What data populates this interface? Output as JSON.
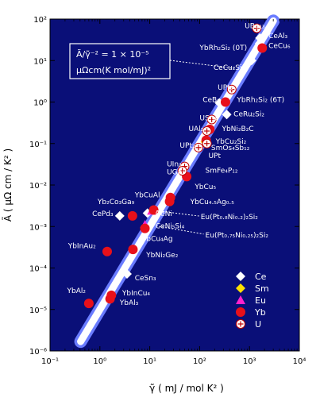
{
  "chart_data": {
    "type": "scatter",
    "title": "",
    "xlabel": "γ̃ ( mJ / mol K² )",
    "ylabel": "Ã ( μΩ cm / K² )",
    "xscale": "log",
    "yscale": "log",
    "xlim": [
      0.1,
      10000
    ],
    "ylim": [
      1e-06,
      100
    ],
    "x_tick_labels": [
      "10⁻¹",
      "10⁰",
      "10¹",
      "10²",
      "10³",
      "10⁴"
    ],
    "y_tick_labels": [
      "10⁻⁶",
      "10⁻⁵",
      "10⁻⁴",
      "10⁻³",
      "10⁻²",
      "10⁻¹",
      "10⁰",
      "10¹",
      "10²"
    ],
    "background_color": "#0a0f78",
    "grid": false,
    "legend_position": "lower-right",
    "annotation": {
      "line1": "Ã/γ̃⁻² = 1 × 10⁻⁵",
      "line2": "μΩcm(K mol/mJ)²"
    },
    "reference_line": {
      "ratio": 1e-05
    },
    "series": [
      {
        "name": "Ce",
        "marker": "diamond",
        "color": "#ffffff",
        "points": [
          {
            "label": "CeAl₃",
            "x": 1620,
            "y": 35
          },
          {
            "label": "CeCu₆",
            "x": 1600,
            "y": 26
          },
          {
            "label": "CeCu₂Si₂",
            "x": 1100,
            "y": 10
          },
          {
            "label": "CeB₆",
            "x": 250,
            "y": 0.95
          },
          {
            "label": "CeRu₂Si₂",
            "x": 350,
            "y": 0.5
          },
          {
            "label": "CePd₃",
            "x": 2.5,
            "y": 0.0018
          },
          {
            "label": "CeNi",
            "x": 9,
            "y": 0.0021
          },
          {
            "label": "CeNi₅Si₄",
            "x": 8,
            "y": 0.00095
          },
          {
            "label": "CeSn₃",
            "x": 3.5,
            "y": 7.2e-05
          }
        ]
      },
      {
        "name": "Sm",
        "marker": "diamond",
        "color": "#ffe000",
        "points": [
          {
            "label": "SmOs₄Sb₁₂",
            "x": 130,
            "y": 0.11
          },
          {
            "label": "SmFe₄P₁₂",
            "x": 48,
            "y": 0.028
          }
        ]
      },
      {
        "name": "Eu",
        "marker": "triangle",
        "color": "#ff22cc",
        "points": [
          {
            "label": "Eu(Pt₀.₈Ni₀.₂)₂Si₂",
            "x": 11,
            "y": 0.0024
          },
          {
            "label": "Eu(Pt₀.₇₅Ni₀.₂₅)₂Si₂",
            "x": 8,
            "y": 0.0011
          }
        ]
      },
      {
        "name": "Yb",
        "marker": "circle",
        "color": "#e8101a",
        "points": [
          {
            "label": "YbRh₂Si₂ (0T)",
            "x": 1800,
            "y": 20
          },
          {
            "label": "YbRh₂Si₂ (6T)",
            "x": 330,
            "y": 1
          },
          {
            "label": "YbNi₂B₂C",
            "x": 160,
            "y": 0.22
          },
          {
            "label": "YbCu₂Si₂",
            "x": 135,
            "y": 0.12
          },
          {
            "label": "YbCu₅",
            "x": 55,
            "y": 0.016
          },
          {
            "label": "YbCuAl",
            "x": 26,
            "y": 0.005
          },
          {
            "label": "YbCu₄.₅Ag₀.₅",
            "x": 25,
            "y": 0.004
          },
          {
            "label": "Yb₂Co₃Ga₉",
            "x": 12,
            "y": 0.0025
          },
          {
            "label": "YbCu₄Ag",
            "x": 8,
            "y": 0.0009
          },
          {
            "label": "YbInAu₂",
            "x": 1.4,
            "y": 0.00025
          },
          {
            "label": "YbNi₂Ge₂",
            "x": 4.6,
            "y": 0.00028
          },
          {
            "label": "YbInCu₄",
            "x": 1.7,
            "y": 2.2e-05
          },
          {
            "label": "YbAl₃",
            "x": 1.6,
            "y": 1.8e-05
          },
          {
            "label": "YbAl₂",
            "x": 0.6,
            "y": 1.4e-05
          },
          {
            "label": "Yb (unlabeled)",
            "x": 4.5,
            "y": 0.0018
          }
        ]
      },
      {
        "name": "U",
        "marker": "circle-plus",
        "color": "#ffffff",
        "points": [
          {
            "label": "UBe₁₃",
            "x": 1400,
            "y": 60
          },
          {
            "label": "UPt₃",
            "x": 440,
            "y": 2
          },
          {
            "label": "USn₃",
            "x": 175,
            "y": 0.38
          },
          {
            "label": "UAl₂",
            "x": 140,
            "y": 0.2
          },
          {
            "label": "UPt₂",
            "x": 95,
            "y": 0.08
          },
          {
            "label": "UPt",
            "x": 140,
            "y": 0.1
          },
          {
            "label": "UIn₃",
            "x": 50,
            "y": 0.028
          },
          {
            "label": "UGa₃",
            "x": 45,
            "y": 0.022
          }
        ]
      }
    ],
    "point_labels": [
      {
        "text": "UBe₁₃",
        "x": 800,
        "y": 60
      },
      {
        "text": "CeAl₃",
        "x": 2400,
        "y": 35
      },
      {
        "text": "CeCu₆",
        "x": 2400,
        "y": 20
      },
      {
        "text": "YbRh₂Si₂ (0T)",
        "x": 100,
        "y": 18
      },
      {
        "text": "CeCu₂Si₂",
        "x": 190,
        "y": 6
      },
      {
        "text": "UPt₃",
        "x": 230,
        "y": 2
      },
      {
        "text": "CeB₆",
        "x": 115,
        "y": 1
      },
      {
        "text": "YbRh₂Si₂ (6T)",
        "x": 560,
        "y": 1
      },
      {
        "text": "CeRu₂Si₂",
        "x": 480,
        "y": 0.45
      },
      {
        "text": "USn₃",
        "x": 100,
        "y": 0.36
      },
      {
        "text": "YbNi₂B₂C",
        "x": 280,
        "y": 0.2
      },
      {
        "text": "UAl₂",
        "x": 60,
        "y": 0.2
      },
      {
        "text": "YbCu₂Si₂",
        "x": 210,
        "y": 0.1
      },
      {
        "text": "UPt₂",
        "x": 40,
        "y": 0.08
      },
      {
        "text": "SmOs₄Sb₁₂",
        "x": 170,
        "y": 0.07
      },
      {
        "text": "UPt",
        "x": 150,
        "y": 0.045
      },
      {
        "text": "UIn₃",
        "x": 22,
        "y": 0.028
      },
      {
        "text": "SmFe₄P₁₂",
        "x": 130,
        "y": 0.02
      },
      {
        "text": "UGa₃",
        "x": 22,
        "y": 0.018
      },
      {
        "text": "YbCu₅",
        "x": 80,
        "y": 0.008
      },
      {
        "text": "YbCuAl",
        "x": 5,
        "y": 0.005
      },
      {
        "text": "Yb₂Co₃Ga₉",
        "x": 0.9,
        "y": 0.0035
      },
      {
        "text": "YbCu₄.₅Ag₀.₅",
        "x": 65,
        "y": 0.0035
      },
      {
        "text": "CePd₃",
        "x": 0.7,
        "y": 0.0018
      },
      {
        "text": "CeNi",
        "x": 13,
        "y": 0.0018
      },
      {
        "text": "Eu(Pt₀.₈Ni₀.₂)₂Si₂",
        "x": 105,
        "y": 0.0015
      },
      {
        "text": "CeNi₅Si₄",
        "x": 13,
        "y": 0.0009
      },
      {
        "text": "Eu(Pt₀.₇₅Ni₀.₂₅)₂Si₂",
        "x": 130,
        "y": 0.00055
      },
      {
        "text": "YbCu₄Ag",
        "x": 7,
        "y": 0.00045
      },
      {
        "text": "YbInAu₂",
        "x": 0.23,
        "y": 0.0003
      },
      {
        "text": "YbNi₂Ge₂",
        "x": 8.5,
        "y": 0.00018
      },
      {
        "text": "CeSn₃",
        "x": 5,
        "y": 5e-05
      },
      {
        "text": "YbAl₂",
        "x": 0.22,
        "y": 2.5e-05
      },
      {
        "text": "YbInCu₄",
        "x": 2.8,
        "y": 2.2e-05
      },
      {
        "text": "YbAl₃",
        "x": 2.5,
        "y": 1.3e-05
      }
    ]
  }
}
